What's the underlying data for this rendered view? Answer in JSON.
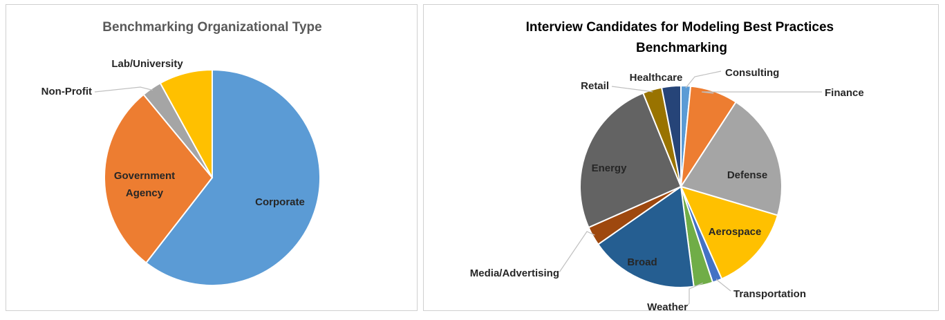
{
  "chart_data": [
    {
      "type": "pie",
      "title": "Benchmarking Organizational Type",
      "slices": [
        {
          "label": "Corporate",
          "value": 60.5,
          "color": "#5b9bd5"
        },
        {
          "label": "Government Agency",
          "value": 28.5,
          "color": "#ed7d31"
        },
        {
          "label": "Non-Profit",
          "value": 3.0,
          "color": "#a5a5a5"
        },
        {
          "label": "Lab/University",
          "value": 8.0,
          "color": "#ffc000"
        }
      ]
    },
    {
      "type": "pie",
      "title": "Interview Candidates for Modeling Best Practices Benchmarking",
      "slices": [
        {
          "label": "Consulting",
          "value": 1.5,
          "color": "#5b9bd5"
        },
        {
          "label": "Finance",
          "value": 7.5,
          "color": "#ed7d31"
        },
        {
          "label": "Defense",
          "value": 20.0,
          "color": "#a5a5a5"
        },
        {
          "label": "Aerospace",
          "value": 13.5,
          "color": "#ffc000"
        },
        {
          "label": "Transportation",
          "value": 1.5,
          "color": "#4472c4"
        },
        {
          "label": "Weather",
          "value": 3.0,
          "color": "#70ad47"
        },
        {
          "label": "Broad",
          "value": 17.0,
          "color": "#255e91"
        },
        {
          "label": "Media/Advertising",
          "value": 3.0,
          "color": "#9e480e"
        },
        {
          "label": "Energy",
          "value": 25.0,
          "color": "#636363"
        },
        {
          "label": "Retail",
          "value": 3.0,
          "color": "#997300"
        },
        {
          "label": "Healthcare",
          "value": 3.0,
          "color": "#264478"
        }
      ]
    }
  ]
}
